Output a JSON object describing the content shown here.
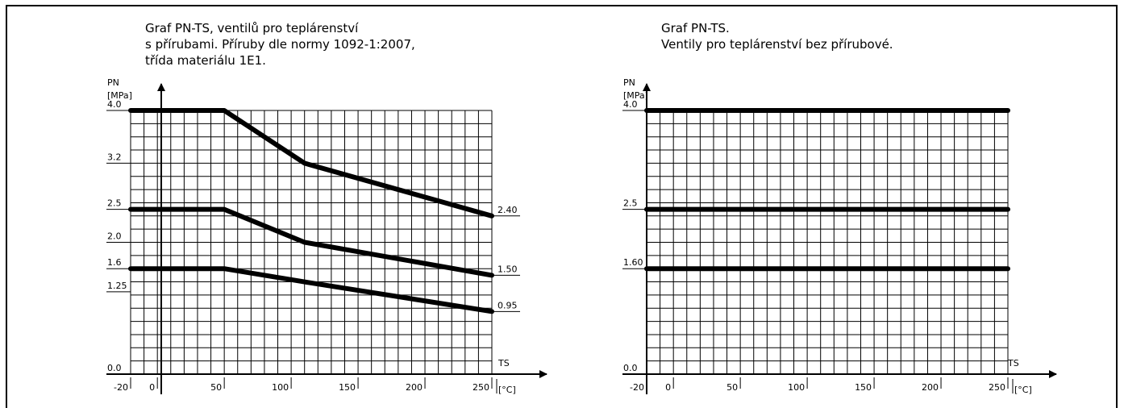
{
  "chart_data": [
    {
      "type": "line",
      "title": "Graf PN-TS, ventilů pro teplárenství\ns přírubami. Příruby dle normy 1092-1:2007,\ntřída materiálu 1E1.",
      "xlabel": "TS",
      "xunit": "[°C]",
      "ylabel": "PN",
      "yunit": "[MPa]",
      "x_ticks": [
        "-20",
        "0",
        "50",
        "100",
        "150",
        "200",
        "250"
      ],
      "y_ticks": [
        "0.0",
        "1.25",
        "1.6",
        "2.0",
        "2.5",
        "3.2",
        "4.0"
      ],
      "xlim": [
        -20,
        250
      ],
      "ylim": [
        0,
        4.0
      ],
      "grid": true,
      "series": [
        {
          "x": [
            -20,
            50,
            110,
            250
          ],
          "y": [
            4.0,
            4.0,
            3.2,
            2.4
          ],
          "end_label": "2.40"
        },
        {
          "x": [
            -20,
            50,
            110,
            250
          ],
          "y": [
            2.5,
            2.5,
            2.0,
            1.5
          ],
          "end_label": "1.50"
        },
        {
          "x": [
            -20,
            50,
            110,
            250
          ],
          "y": [
            1.6,
            1.6,
            1.4,
            0.95
          ],
          "end_label": "0.95"
        }
      ]
    },
    {
      "type": "line",
      "title": "Graf PN-TS.\nVentily pro teplárenství bez přírubové.",
      "xlabel": "TS",
      "xunit": "[°C]",
      "ylabel": "PN",
      "yunit": "[MPa]",
      "x_ticks": [
        "-20",
        "0",
        "50",
        "100",
        "150",
        "200",
        "250"
      ],
      "y_ticks": [
        "0.0",
        "1.60",
        "2.5",
        "4.0"
      ],
      "xlim": [
        -20,
        250
      ],
      "ylim": [
        0,
        4.0
      ],
      "grid": true,
      "series": [
        {
          "x": [
            -20,
            250
          ],
          "y": [
            4.0,
            4.0
          ]
        },
        {
          "x": [
            -20,
            250
          ],
          "y": [
            2.5,
            2.5
          ]
        },
        {
          "x": [
            -20,
            250
          ],
          "y": [
            1.6,
            1.6
          ]
        }
      ]
    }
  ]
}
